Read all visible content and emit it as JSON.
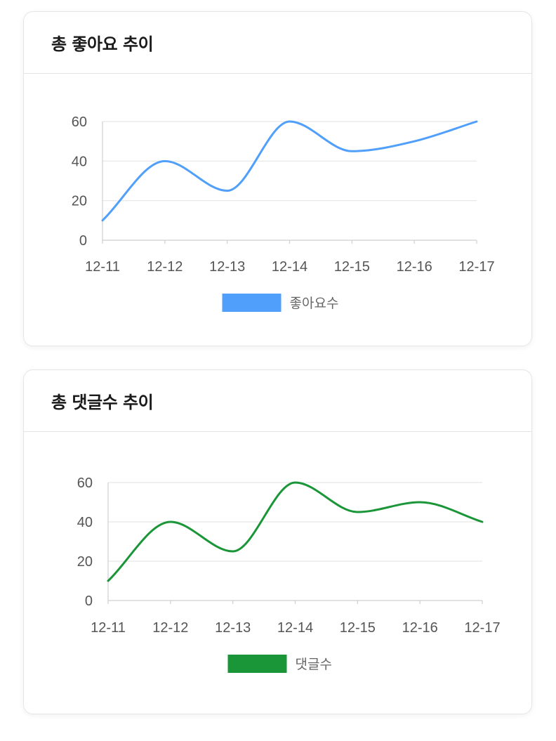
{
  "cards": [
    {
      "title": "총 좋아요 추이",
      "chart_data": {
        "type": "line",
        "categories": [
          "12-11",
          "12-12",
          "12-13",
          "12-14",
          "12-15",
          "12-16",
          "12-17"
        ],
        "series": [
          {
            "name": "좋아요수",
            "values": [
              10,
              40,
              25,
              60,
              45,
              50,
              60
            ],
            "color": "#4f9ffb"
          }
        ],
        "yticks": [
          0,
          20,
          40,
          60
        ],
        "ylim": [
          0,
          60
        ],
        "grid": true,
        "legend": "bottom",
        "title": "",
        "xlabel": "",
        "ylabel": ""
      }
    },
    {
      "title": "총 댓글수 추이",
      "chart_data": {
        "type": "line",
        "categories": [
          "12-11",
          "12-12",
          "12-13",
          "12-14",
          "12-15",
          "12-16",
          "12-17"
        ],
        "series": [
          {
            "name": "댓글수",
            "values": [
              10,
              40,
              25,
              60,
              45,
              50,
              40
            ],
            "color": "#1a9638"
          }
        ],
        "yticks": [
          0,
          20,
          40,
          60
        ],
        "ylim": [
          0,
          60
        ],
        "grid": true,
        "legend": "bottom",
        "title": "",
        "xlabel": "",
        "ylabel": ""
      }
    }
  ]
}
